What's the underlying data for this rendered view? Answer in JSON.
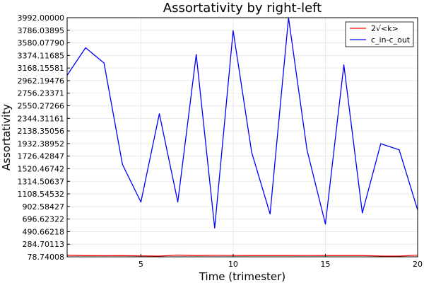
{
  "chart_data": {
    "type": "line",
    "title": "Assortativity by right-left",
    "xlabel": "Time (trimester)",
    "ylabel": "Assortativity",
    "xlim": [
      1,
      20
    ],
    "ylim": [
      78.74008,
      3992.0
    ],
    "x_ticks": [
      5,
      10,
      15,
      20
    ],
    "x_tick_labels": [
      "5",
      "10",
      "15",
      "20"
    ],
    "y_ticks": [
      78.74008,
      284.70113,
      490.66218,
      696.62322,
      902.58427,
      1108.54532,
      1314.50637,
      1520.46742,
      1726.42847,
      1932.38952,
      2138.35056,
      2344.31161,
      2550.27266,
      2756.23371,
      2962.19476,
      3168.15581,
      3374.11685,
      3580.0779,
      3786.03895,
      3992.0
    ],
    "y_tick_labels": [
      "78.74008",
      "284.70113",
      "490.66218",
      "696.62322",
      "902.58427",
      "1108.54532",
      "1314.50637",
      "1520.46742",
      "1726.42847",
      "1932.38952",
      "2138.35056",
      "2344.31161",
      "2550.27266",
      "2756.23371",
      "2962.19476",
      "3168.15581",
      "3374.11685",
      "3580.07790",
      "3786.03895",
      "3992.00000"
    ],
    "grid": true,
    "legend_position": "top-right",
    "x": [
      1,
      2,
      3,
      4,
      5,
      6,
      7,
      8,
      9,
      10,
      11,
      12,
      13,
      14,
      15,
      16,
      17,
      18,
      19,
      20
    ],
    "series": [
      {
        "name": "2√<k>",
        "color": "#ff0000",
        "values": [
          105,
          98,
          97,
          98,
          95,
          90,
          108,
          100,
          103,
          101,
          100,
          100,
          100,
          101,
          100,
          100,
          100,
          92,
          90,
          108
        ]
      },
      {
        "name": "c_in-c_out",
        "color": "#0000ff",
        "values": [
          3050,
          3500,
          3250,
          1590,
          975,
          2420,
          975,
          3390,
          550,
          3780,
          1790,
          780,
          3992,
          1830,
          615,
          3220,
          795,
          1930,
          1830,
          845
        ]
      }
    ]
  }
}
